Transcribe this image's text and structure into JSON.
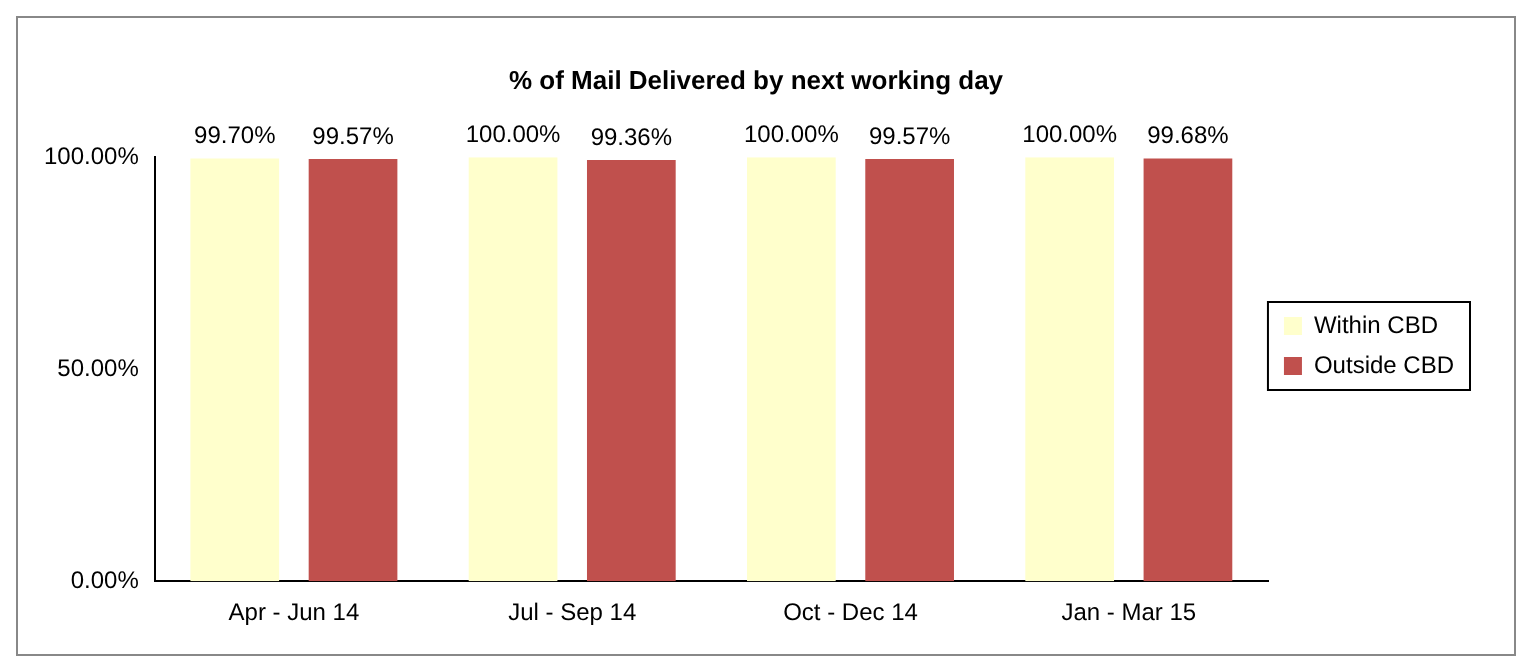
{
  "chart_data": {
    "type": "bar",
    "title": "% of Mail Delivered by next working day",
    "categories": [
      "Apr - Jun 14",
      "Jul - Sep 14",
      "Oct - Dec 14",
      "Jan - Mar 15"
    ],
    "series": [
      {
        "name": "Within CBD",
        "color": "#ffffcc",
        "values": [
          99.7,
          100.0,
          100.0,
          100.0
        ],
        "value_labels": [
          "99.70%",
          "100.00%",
          "100.00%",
          "100.00%"
        ]
      },
      {
        "name": "Outside CBD",
        "color": "#c0504d",
        "values": [
          99.57,
          99.36,
          99.57,
          99.68
        ],
        "value_labels": [
          "99.57%",
          "99.36%",
          "99.57%",
          "99.68%"
        ]
      }
    ],
    "ylim": [
      0,
      100
    ],
    "yticks": [
      {
        "value": 0,
        "label": "0.00%"
      },
      {
        "value": 50,
        "label": "50.00%"
      },
      {
        "value": 100,
        "label": "100.00%"
      }
    ],
    "grid": false,
    "legend": "right"
  }
}
